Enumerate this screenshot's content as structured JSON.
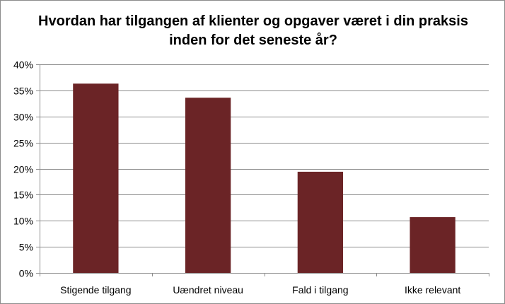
{
  "chart_data": {
    "type": "bar",
    "title": "Hvordan har tilgangen af klienter og opgaver været i din praksis inden for det seneste år?",
    "categories": [
      "Stigende tilgang",
      "Uændret niveau",
      "Fald i tilgang",
      "Ikke relevant"
    ],
    "values": [
      36.3,
      33.6,
      19.4,
      10.7
    ],
    "yunit": "%",
    "ylim": [
      0,
      40
    ],
    "ytick_step": 5,
    "grid": true,
    "legend": "none",
    "bar_color": "#6b2426",
    "grid_color": "#8c8c8c"
  }
}
